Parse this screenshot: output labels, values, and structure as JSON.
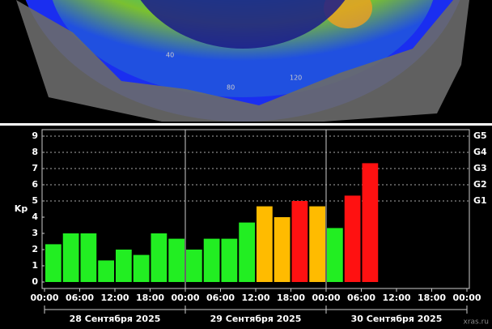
{
  "map": {
    "grid_labels": [
      "40",
      "80",
      "120"
    ]
  },
  "chart_data": {
    "type": "bar",
    "x": [
      0,
      3,
      6,
      9,
      12,
      15,
      18,
      21,
      24,
      27,
      30,
      33,
      36,
      39,
      42,
      45,
      48,
      51,
      54
    ],
    "values": [
      2.33,
      3,
      3,
      1.33,
      2,
      1.67,
      3,
      2.67,
      2,
      2.67,
      2.67,
      3.67,
      4.67,
      4,
      5,
      4.67,
      3.33,
      5.33,
      7.33
    ],
    "colors": [
      "#22ee22",
      "#22ee22",
      "#22ee22",
      "#22ee22",
      "#22ee22",
      "#22ee22",
      "#22ee22",
      "#22ee22",
      "#22ee22",
      "#22ee22",
      "#22ee22",
      "#22ee22",
      "#ffbb00",
      "#ffbb00",
      "#ff1111",
      "#ffbb00",
      "#22ee22",
      "#ff1111",
      "#ff1111"
    ],
    "bar_width": 3,
    "xlim": [
      0,
      72
    ],
    "xticks": [
      {
        "value": 0,
        "label": "00:00"
      },
      {
        "value": 6,
        "label": "06:00"
      },
      {
        "value": 12,
        "label": "12:00"
      },
      {
        "value": 18,
        "label": "18:00"
      },
      {
        "value": 24,
        "label": "00:00"
      },
      {
        "value": 30,
        "label": "06:00"
      },
      {
        "value": 36,
        "label": "12:00"
      },
      {
        "value": 42,
        "label": "18:00"
      },
      {
        "value": 48,
        "label": "00:00"
      },
      {
        "value": 54,
        "label": "06:00"
      },
      {
        "value": 60,
        "label": "12:00"
      },
      {
        "value": 66,
        "label": "18:00"
      },
      {
        "value": 72,
        "label": "00:00"
      }
    ],
    "day_separators": [
      24,
      48
    ],
    "days": [
      "28 Сентября 2025",
      "29 Сентября 2025",
      "30 Сентября 2025"
    ],
    "ylabel": "Kp",
    "ylim": [
      -0.4,
      9.4
    ],
    "yticks": [
      0,
      1,
      2,
      3,
      4,
      5,
      6,
      7,
      8,
      9
    ],
    "y2lim": [
      -0.4,
      9.4
    ],
    "y2ticks": [
      {
        "value": 5,
        "label": "G1"
      },
      {
        "value": 6,
        "label": "G2"
      },
      {
        "value": 7,
        "label": "G3"
      },
      {
        "value": 8,
        "label": "G4"
      },
      {
        "value": 9,
        "label": "G5"
      }
    ],
    "grid": true,
    "source": "xras.ru"
  }
}
